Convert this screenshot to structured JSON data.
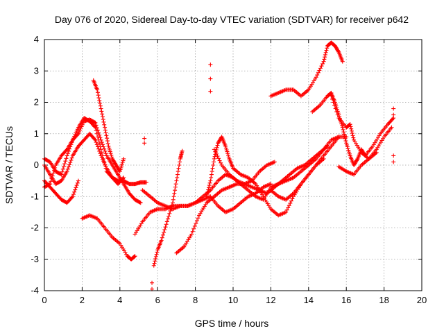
{
  "chart_data": {
    "type": "scatter",
    "title": "Day 076 of 2020, Sidereal Day-to-day VTEC variation (SDTVAR) for receiver p642",
    "xlabel": "GPS time / hours",
    "ylabel": "SDTVAR / TECUs",
    "xlim": [
      0,
      20
    ],
    "ylim": [
      -4,
      4
    ],
    "xticks": [
      "0",
      "2",
      "4",
      "6",
      "8",
      "10",
      "12",
      "14",
      "16",
      "18",
      "20"
    ],
    "yticks": [
      "-4",
      "-3",
      "-2",
      "-1",
      "0",
      "1",
      "2",
      "3",
      "4"
    ],
    "grid": true,
    "marker": "+",
    "color": "#ff0000",
    "series": [
      {
        "name": "trace-a",
        "x": [
          0.0,
          0.3,
          0.6,
          0.9,
          1.2,
          1.5,
          1.8,
          2.1,
          2.4,
          2.7,
          3.0,
          3.3,
          3.6,
          3.9,
          4.2,
          4.5,
          4.8,
          5.1,
          5.4
        ],
        "y": [
          0.2,
          0.1,
          -0.2,
          -0.3,
          0.3,
          0.8,
          1.2,
          1.5,
          1.4,
          1.2,
          0.5,
          -0.2,
          -0.4,
          -0.5,
          -0.5,
          -0.6,
          -0.6,
          -0.55,
          -0.55
        ]
      },
      {
        "name": "trace-b",
        "x": [
          0.0,
          0.3,
          0.6,
          0.9,
          1.2,
          1.5,
          1.8,
          2.1,
          2.4,
          2.7,
          3.0,
          3.3,
          3.6,
          3.9,
          4.2,
          4.5,
          4.8,
          5.1
        ],
        "y": [
          -0.7,
          -0.6,
          0.0,
          0.3,
          0.5,
          0.8,
          1.0,
          1.4,
          1.45,
          1.35,
          0.8,
          0.3,
          0.0,
          -0.3,
          -0.6,
          -0.9,
          -1.1,
          -1.2
        ]
      },
      {
        "name": "trace-c",
        "x": [
          0.0,
          0.3,
          0.6,
          0.9,
          1.2,
          1.5,
          1.8,
          2.1,
          2.4,
          2.7,
          3.0,
          3.3,
          3.6,
          3.9,
          4.2
        ],
        "y": [
          0.0,
          -0.3,
          -0.6,
          -0.5,
          -0.2,
          0.3,
          0.6,
          0.8,
          1.0,
          0.8,
          0.3,
          -0.1,
          -0.4,
          -0.6,
          -0.4
        ]
      },
      {
        "name": "trace-d",
        "x": [
          0.0,
          0.3,
          0.6,
          0.9,
          1.2,
          1.5,
          1.8
        ],
        "y": [
          -0.5,
          -0.7,
          -0.9,
          -1.1,
          -1.2,
          -1.0,
          -0.5
        ]
      },
      {
        "name": "trace-e",
        "x": [
          2.6,
          2.8,
          3.0,
          3.2,
          3.4,
          3.6,
          3.8,
          4.0,
          4.2
        ],
        "y": [
          2.7,
          2.4,
          1.8,
          1.2,
          0.6,
          0.2,
          0.0,
          -0.2,
          0.2
        ]
      },
      {
        "name": "trace-f",
        "x": [
          2.0,
          2.4,
          2.8,
          3.2,
          3.6,
          4.0,
          4.4,
          4.6,
          4.8
        ],
        "y": [
          -1.7,
          -1.6,
          -1.7,
          -2.0,
          -2.3,
          -2.5,
          -2.9,
          -3.0,
          -2.9
        ]
      },
      {
        "name": "trace-g",
        "x": [
          5.2,
          5.6,
          6.0,
          6.4,
          6.8,
          7.2,
          7.6,
          8.0,
          8.4,
          8.8,
          9.2,
          9.6,
          10.0,
          10.4,
          10.8,
          11.2,
          11.6,
          12.0
        ],
        "y": [
          -0.8,
          -1.0,
          -1.2,
          -1.3,
          -1.4,
          -1.3,
          -1.3,
          -1.2,
          -1.1,
          -1.0,
          -1.3,
          -1.5,
          -1.4,
          -1.2,
          -1.0,
          -0.9,
          -0.7,
          -0.6
        ]
      },
      {
        "name": "trace-h",
        "x": [
          4.8,
          5.2,
          5.6,
          6.0,
          6.4,
          6.8,
          7.2,
          7.6,
          8.0,
          8.4,
          8.8,
          9.2,
          9.6,
          10.0,
          10.4,
          10.8,
          11.2,
          11.6,
          12.0,
          12.4,
          12.8,
          13.2,
          13.6,
          14.0,
          14.4,
          14.8,
          15.2,
          15.6,
          16.0
        ],
        "y": [
          -2.2,
          -1.8,
          -1.5,
          -1.4,
          -1.4,
          -1.3,
          -1.3,
          -1.3,
          -1.2,
          -1.0,
          -0.8,
          -0.5,
          -0.3,
          -0.4,
          -0.6,
          -0.8,
          -1.0,
          -1.1,
          -0.7,
          -0.6,
          -0.5,
          -0.4,
          -0.2,
          0.0,
          0.2,
          0.5,
          0.8,
          0.9,
          0.9
        ]
      },
      {
        "name": "trace-i",
        "x": [
          5.8,
          6.0,
          6.2,
          6.5,
          6.8,
          7.0,
          7.2,
          7.3
        ],
        "y": [
          -3.2,
          -2.7,
          -2.4,
          -1.8,
          -1.2,
          -0.5,
          0.2,
          0.45
        ]
      },
      {
        "name": "trace-j",
        "x": [
          7.0,
          7.4,
          7.8,
          8.2,
          8.6,
          9.0,
          9.4,
          9.8,
          10.2,
          10.6,
          11.0,
          11.4,
          11.8,
          12.2,
          12.6,
          13.0,
          13.4,
          13.8,
          14.2,
          14.6,
          15.0
        ],
        "y": [
          -2.8,
          -2.6,
          -2.2,
          -1.6,
          -1.2,
          -1.0,
          -0.8,
          -0.7,
          -0.6,
          -0.6,
          -0.7,
          -0.8,
          -0.9,
          -0.7,
          -0.5,
          -0.3,
          -0.1,
          0.0,
          0.2,
          0.4,
          0.6
        ]
      },
      {
        "name": "trace-k",
        "x": [
          8.6,
          8.8,
          9.0,
          9.2,
          9.4,
          9.6,
          9.8,
          10.0,
          10.4,
          10.8,
          11.2,
          11.6,
          12.0,
          12.4,
          12.8,
          13.2,
          13.6,
          14.0,
          14.4,
          14.8
        ],
        "y": [
          -1.0,
          -0.5,
          0.2,
          0.7,
          0.9,
          0.6,
          0.2,
          -0.1,
          -0.3,
          -0.4,
          -0.6,
          -1.0,
          -1.4,
          -1.6,
          -1.5,
          -1.0,
          -0.6,
          -0.3,
          0.0,
          0.2
        ]
      },
      {
        "name": "trace-l",
        "x": [
          9.0,
          9.4,
          9.8,
          10.2,
          10.6,
          11.0,
          11.4,
          11.8,
          12.2
        ],
        "y": [
          0.5,
          0.0,
          -0.3,
          -0.5,
          -0.6,
          -0.5,
          -0.2,
          0.0,
          0.1
        ]
      },
      {
        "name": "trace-m",
        "x": [
          12.0,
          12.4,
          12.8,
          13.2,
          13.6,
          14.0,
          14.4,
          14.8,
          15.0,
          15.2,
          15.4,
          15.6,
          15.8
        ],
        "y": [
          2.2,
          2.3,
          2.4,
          2.4,
          2.2,
          2.4,
          2.8,
          3.3,
          3.8,
          3.9,
          3.8,
          3.6,
          3.3
        ]
      },
      {
        "name": "trace-n",
        "x": [
          14.2,
          14.6,
          15.0,
          15.2,
          15.4,
          15.6,
          15.8,
          16.0,
          16.2,
          16.4,
          16.6,
          16.8,
          17.0,
          17.4,
          17.8,
          18.2,
          18.5
        ],
        "y": [
          1.7,
          1.9,
          2.2,
          2.3,
          2.0,
          1.6,
          1.2,
          0.7,
          0.3,
          0.0,
          0.2,
          0.5,
          0.3,
          0.6,
          1.0,
          1.3,
          1.5
        ]
      },
      {
        "name": "trace-o",
        "x": [
          15.2,
          15.6,
          16.0,
          16.2,
          16.4,
          16.8,
          17.2,
          17.6,
          18.0,
          18.4
        ],
        "y": [
          2.2,
          1.5,
          1.2,
          1.3,
          0.8,
          0.4,
          0.2,
          0.5,
          0.9,
          1.2
        ]
      },
      {
        "name": "trace-p",
        "x": [
          15.6,
          16.0,
          16.4,
          16.8,
          17.2,
          17.6
        ],
        "y": [
          -0.05,
          -0.2,
          -0.3,
          0.0,
          0.2,
          0.4
        ]
      },
      {
        "name": "trace-q",
        "x": [
          12.0,
          12.4,
          12.8,
          13.2,
          13.6,
          14.0,
          14.4,
          14.8,
          15.2,
          15.6
        ],
        "y": [
          -0.8,
          -1.0,
          -1.1,
          -0.9,
          -0.6,
          -0.3,
          0.0,
          0.3,
          0.6,
          0.9
        ]
      },
      {
        "name": "scatter-isolated",
        "x": [
          5.3,
          5.3,
          5.7,
          5.7,
          8.8,
          8.8,
          8.8,
          18.5,
          18.5,
          18.5,
          18.5
        ],
        "y": [
          0.85,
          0.7,
          -3.75,
          -3.95,
          3.2,
          2.75,
          2.35,
          1.8,
          1.6,
          0.3,
          0.1
        ]
      }
    ]
  }
}
